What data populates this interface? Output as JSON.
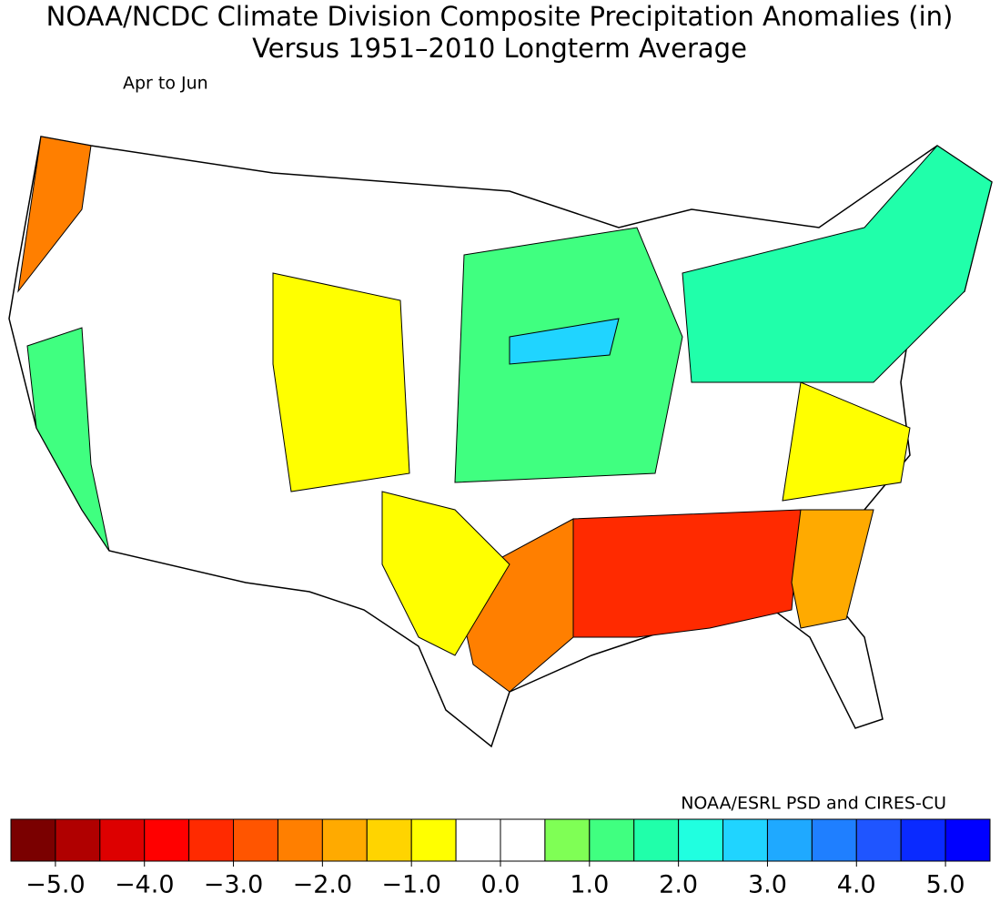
{
  "title": [
    "NOAA/NCDC Climate Division Composite Precipitation Anomalies (in)",
    "Versus 1951–2010 Longterm Average"
  ],
  "subtitle": "Apr to Jun",
  "credit": "NOAA/ESRL PSD and CIRES-CU",
  "regions": [
    {
      "value": -3.5
    },
    {
      "value": -2.5
    },
    {
      "value": -2.0
    },
    {
      "value": -1.0
    },
    {
      "value": -1.0
    },
    {
      "value": -1.0
    },
    {
      "value": 1.0
    },
    {
      "value": 2.5
    },
    {
      "value": 1.5
    },
    {
      "value": 1.0
    },
    {
      "value": -2.5
    }
  ],
  "colorbar": {
    "xlim": [
      -5.5,
      5.5
    ],
    "colors": [
      "#7a0000",
      "#b00000",
      "#dd0000",
      "#ff0000",
      "#ff2a00",
      "#ff5500",
      "#ff7f00",
      "#ffaa00",
      "#ffd400",
      "#ffff00",
      "#ffffff",
      "#ffffff",
      "#7fff55",
      "#40ff80",
      "#20ffaa",
      "#20ffe0",
      "#20d4ff",
      "#1fa9ff",
      "#1f7fff",
      "#1f55ff",
      "#0a2aff",
      "#0000ff"
    ],
    "xticks": [
      {
        "value": -5,
        "label": "−5.0"
      },
      {
        "value": -4,
        "label": "−4.0"
      },
      {
        "value": -3,
        "label": "−3.0"
      },
      {
        "value": -2,
        "label": "−2.0"
      },
      {
        "value": -1,
        "label": "−1.0"
      },
      {
        "value": 0,
        "label": "0.0"
      },
      {
        "value": 1,
        "label": "1.0"
      },
      {
        "value": 2,
        "label": "2.0"
      },
      {
        "value": 3,
        "label": "3.0"
      },
      {
        "value": 4,
        "label": "4.0"
      },
      {
        "value": 5,
        "label": "5.0"
      }
    ]
  }
}
